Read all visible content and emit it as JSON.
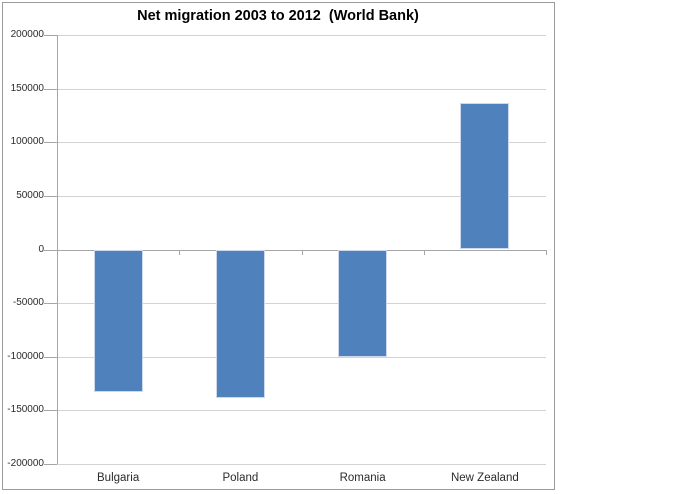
{
  "chart_data": {
    "type": "bar",
    "title": "Net migration 2003 to 2012  (World Bank)",
    "categories": [
      "Bulgaria",
      "Poland",
      "Romania",
      "New Zealand"
    ],
    "values": [
      -133000,
      -138000,
      -100000,
      137000
    ],
    "xlabel": "",
    "ylabel": "",
    "ylim": [
      -200000,
      200000
    ],
    "ytick_step": 50000,
    "ytick_labels": [
      "200000",
      "150000",
      "100000",
      "50000",
      "0",
      "-50000",
      "-100000",
      "-150000",
      "-200000"
    ],
    "grid": "horizontal-only",
    "legend": "none"
  },
  "colors": {
    "bar_fill": "#4f81bd",
    "bar_edge": "#ccd9ec",
    "gridline": "#d3d3d3",
    "axis_line": "#a6a6a6",
    "chart_border": "#9b9b9b",
    "title_text": "#000000",
    "axis_label_text": "#2b2b2b",
    "background": "#ffffff"
  }
}
